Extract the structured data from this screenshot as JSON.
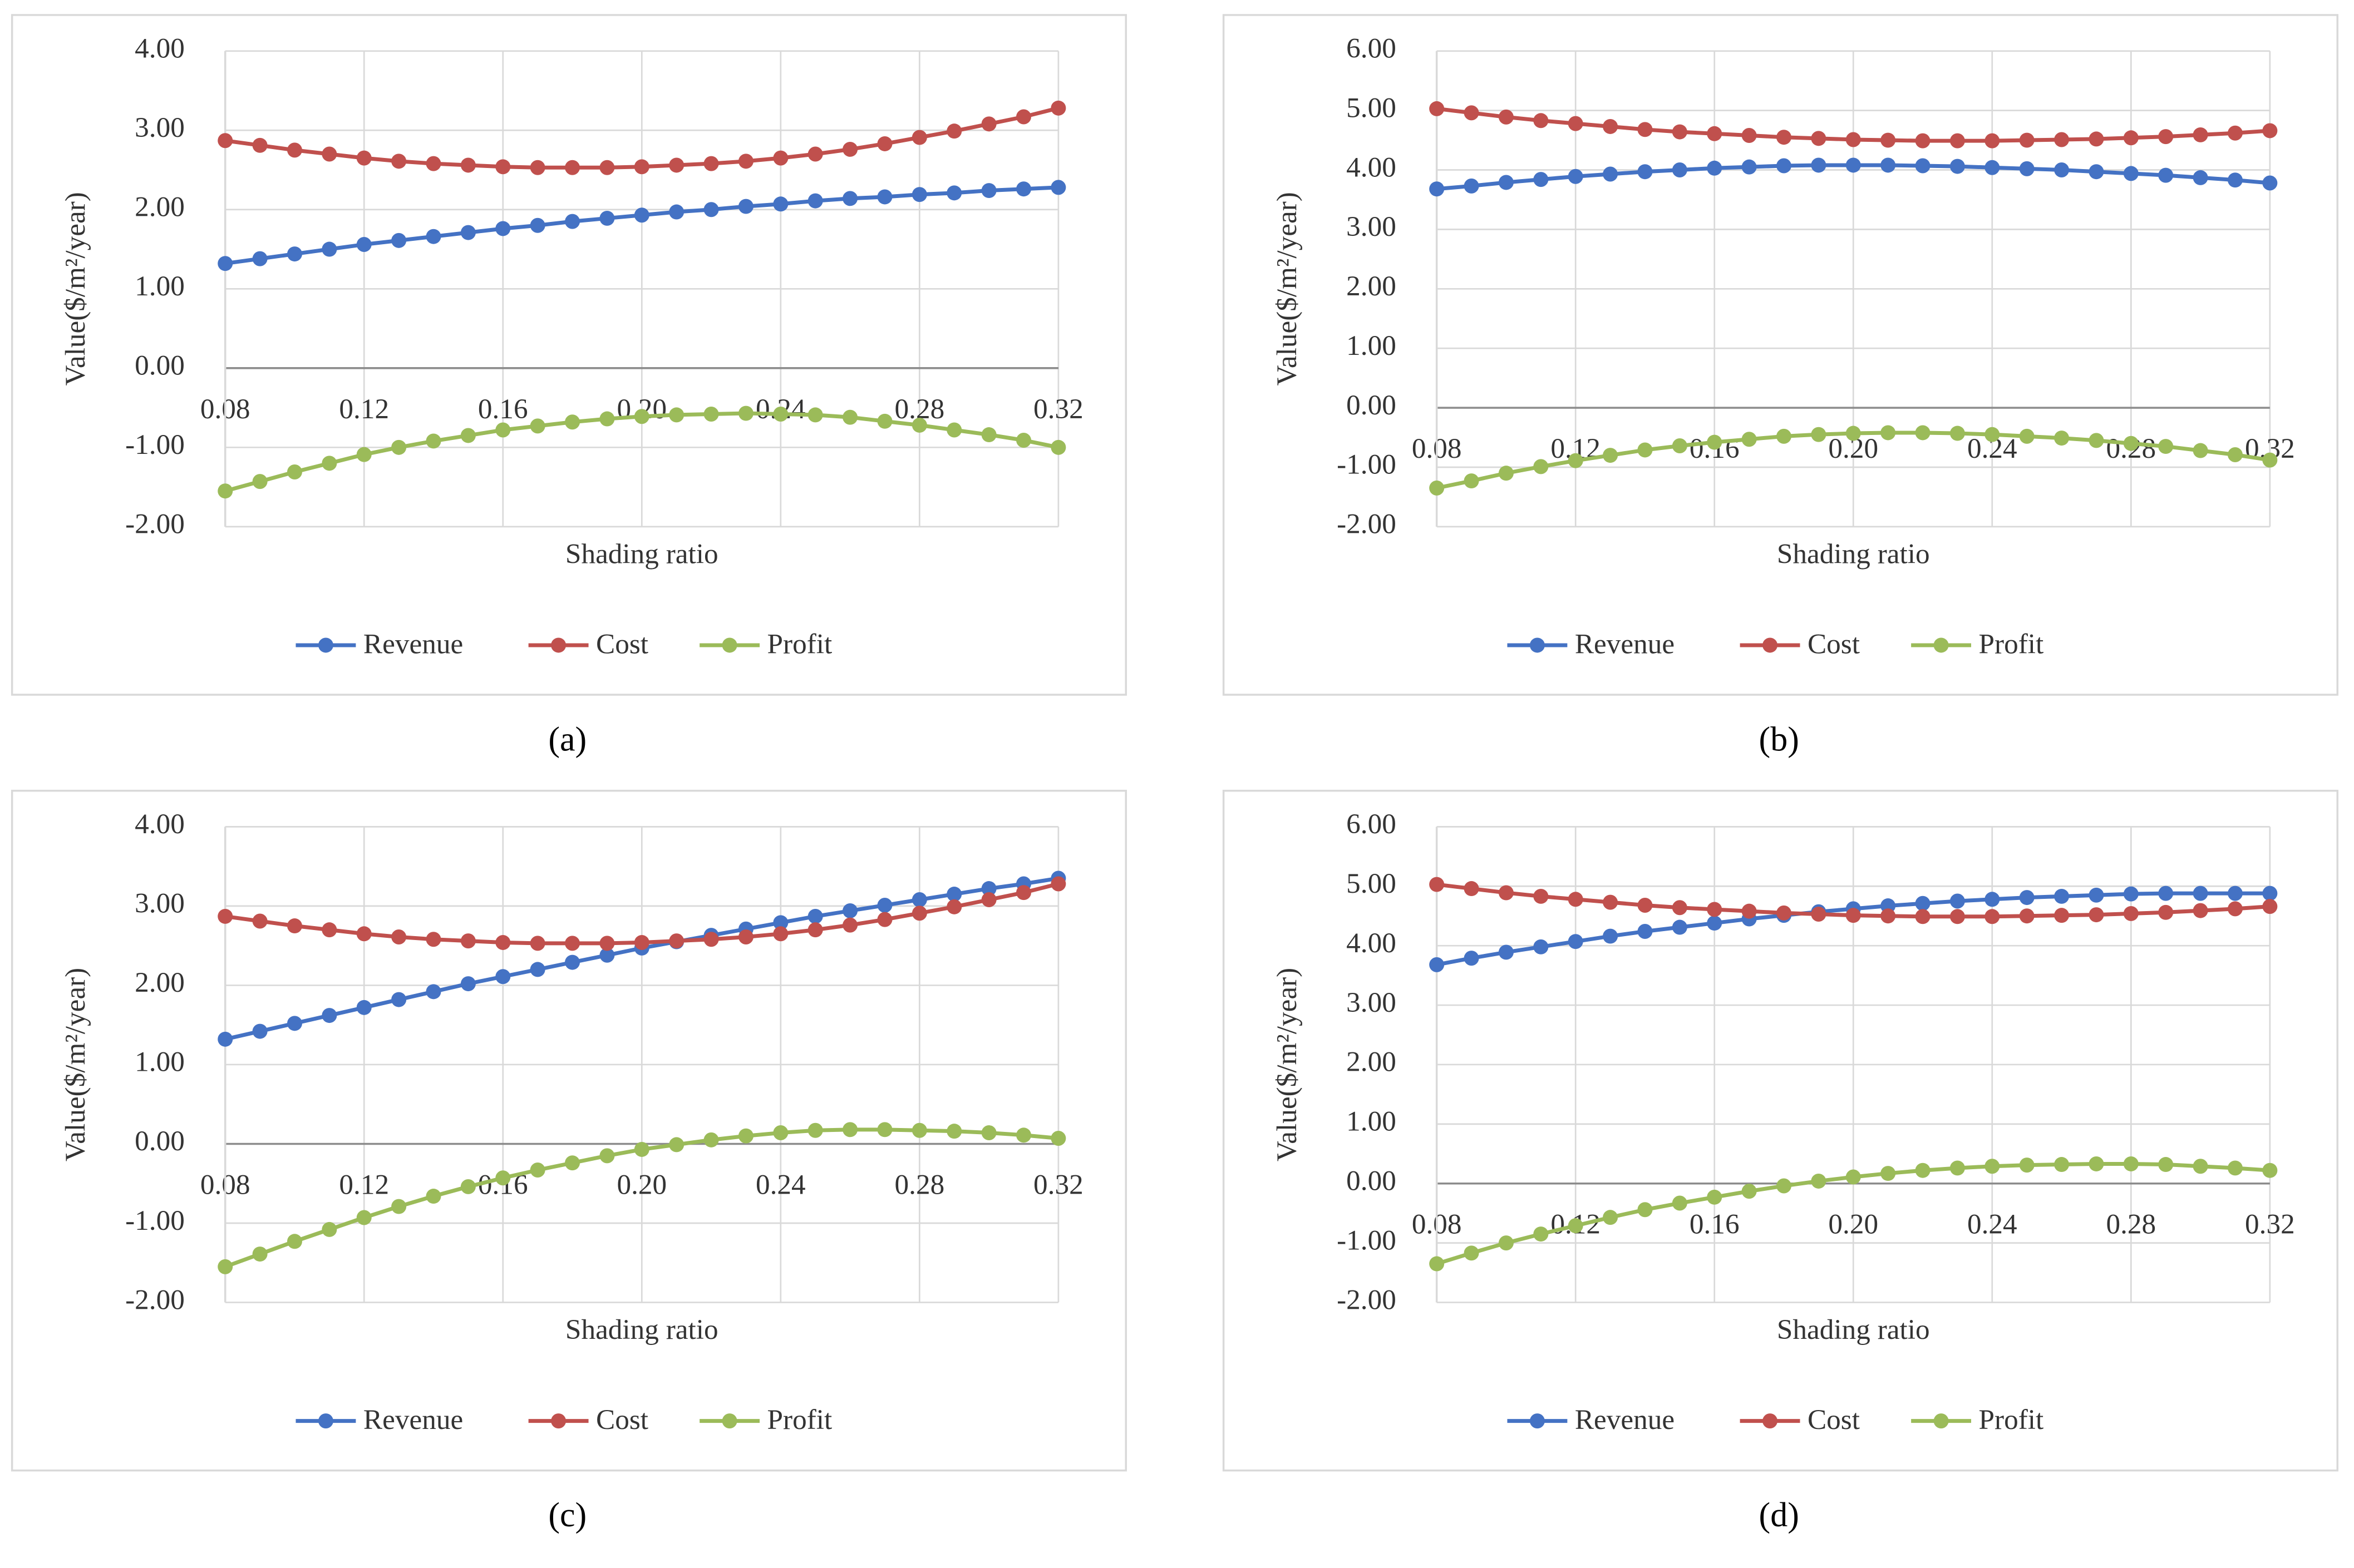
{
  "chart_data": [
    {
      "type": "line",
      "label": "(a)",
      "x_label": "Shading ratio",
      "y_label": "Value($/m²/year)",
      "x": [
        0.08,
        0.09,
        0.1,
        0.11,
        0.12,
        0.13,
        0.14,
        0.15,
        0.16,
        0.17,
        0.18,
        0.19,
        0.2,
        0.21,
        0.22,
        0.23,
        0.24,
        0.25,
        0.26,
        0.27,
        0.28,
        0.29,
        0.3,
        0.31,
        0.32
      ],
      "xlim": [
        0.08,
        0.32
      ],
      "xticks": [
        0.08,
        0.12,
        0.16,
        {
          "value": 0.2,
          "label": "0.20"
        },
        0.24,
        0.28,
        0.32
      ],
      "ylim": [
        -2,
        4
      ],
      "yticks": [
        {
          "value": -2,
          "label": "-2.00"
        },
        {
          "value": -1,
          "label": "-1.00"
        },
        {
          "value": 0,
          "label": "0.00"
        },
        {
          "value": 1,
          "label": "1.00"
        },
        {
          "value": 2,
          "label": "2.00"
        },
        {
          "value": 3,
          "label": "3.00"
        },
        {
          "value": 4,
          "label": "4.00"
        }
      ],
      "grid": true,
      "legend": "bottom",
      "series": [
        {
          "name": "Revenue",
          "color": "#4472c4",
          "values": [
            1.32,
            1.38,
            1.44,
            1.5,
            1.56,
            1.61,
            1.66,
            1.71,
            1.76,
            1.8,
            1.85,
            1.89,
            1.93,
            1.97,
            2.0,
            2.04,
            2.07,
            2.11,
            2.14,
            2.16,
            2.19,
            2.21,
            2.24,
            2.26,
            2.28
          ]
        },
        {
          "name": "Cost",
          "color": "#c0504d",
          "values": [
            2.87,
            2.81,
            2.75,
            2.7,
            2.65,
            2.61,
            2.58,
            2.56,
            2.54,
            2.53,
            2.53,
            2.53,
            2.54,
            2.56,
            2.58,
            2.61,
            2.65,
            2.7,
            2.76,
            2.83,
            2.91,
            2.99,
            3.08,
            3.17,
            3.28
          ]
        },
        {
          "name": "Profit",
          "color": "#9bbb59",
          "values": [
            -1.55,
            -1.43,
            -1.31,
            -1.2,
            -1.09,
            -1.0,
            -0.92,
            -0.85,
            -0.78,
            -0.73,
            -0.68,
            -0.64,
            -0.61,
            -0.59,
            -0.58,
            -0.57,
            -0.58,
            -0.59,
            -0.62,
            -0.67,
            -0.72,
            -0.78,
            -0.84,
            -0.91,
            -1.0
          ]
        }
      ]
    },
    {
      "type": "line",
      "label": "(b)",
      "x_label": "Shading ratio",
      "y_label": "Value($/m²/year)",
      "x": [
        0.08,
        0.09,
        0.1,
        0.11,
        0.12,
        0.13,
        0.14,
        0.15,
        0.16,
        0.17,
        0.18,
        0.19,
        0.2,
        0.21,
        0.22,
        0.23,
        0.24,
        0.25,
        0.26,
        0.27,
        0.28,
        0.29,
        0.3,
        0.31,
        0.32
      ],
      "xlim": [
        0.08,
        0.32
      ],
      "xticks": [
        0.08,
        0.12,
        0.16,
        {
          "value": 0.2,
          "label": "0.20"
        },
        0.24,
        0.28,
        0.32
      ],
      "ylim": [
        -2,
        6
      ],
      "yticks": [
        {
          "value": -2,
          "label": "-2.00"
        },
        {
          "value": -1,
          "label": "-1.00"
        },
        {
          "value": 0,
          "label": "0.00"
        },
        {
          "value": 1,
          "label": "1.00"
        },
        {
          "value": 2,
          "label": "2.00"
        },
        {
          "value": 3,
          "label": "3.00"
        },
        {
          "value": 4,
          "label": "4.00"
        },
        {
          "value": 5,
          "label": "5.00"
        },
        {
          "value": 6,
          "label": "6.00"
        }
      ],
      "grid": true,
      "legend": "bottom",
      "series": [
        {
          "name": "Revenue",
          "color": "#4472c4",
          "values": [
            3.68,
            3.73,
            3.79,
            3.84,
            3.89,
            3.93,
            3.97,
            4.0,
            4.03,
            4.05,
            4.07,
            4.08,
            4.08,
            4.08,
            4.07,
            4.06,
            4.04,
            4.02,
            4.0,
            3.97,
            3.94,
            3.91,
            3.87,
            3.83,
            3.78
          ]
        },
        {
          "name": "Cost",
          "color": "#c0504d",
          "values": [
            5.03,
            4.96,
            4.89,
            4.83,
            4.78,
            4.73,
            4.68,
            4.64,
            4.61,
            4.58,
            4.55,
            4.53,
            4.51,
            4.5,
            4.49,
            4.49,
            4.49,
            4.5,
            4.51,
            4.52,
            4.54,
            4.56,
            4.59,
            4.62,
            4.66
          ]
        },
        {
          "name": "Profit",
          "color": "#9bbb59",
          "values": [
            -1.35,
            -1.23,
            -1.1,
            -0.99,
            -0.89,
            -0.8,
            -0.71,
            -0.64,
            -0.58,
            -0.53,
            -0.48,
            -0.45,
            -0.43,
            -0.42,
            -0.42,
            -0.43,
            -0.45,
            -0.48,
            -0.51,
            -0.55,
            -0.6,
            -0.65,
            -0.72,
            -0.79,
            -0.88
          ]
        }
      ]
    },
    {
      "type": "line",
      "label": "(c)",
      "x_label": "Shading ratio",
      "y_label": "Value($/m²/year)",
      "x": [
        0.08,
        0.09,
        0.1,
        0.11,
        0.12,
        0.13,
        0.14,
        0.15,
        0.16,
        0.17,
        0.18,
        0.19,
        0.2,
        0.21,
        0.22,
        0.23,
        0.24,
        0.25,
        0.26,
        0.27,
        0.28,
        0.29,
        0.3,
        0.31,
        0.32
      ],
      "xlim": [
        0.08,
        0.32
      ],
      "xticks": [
        0.08,
        0.12,
        0.16,
        {
          "value": 0.2,
          "label": "0.20"
        },
        0.24,
        0.28,
        0.32
      ],
      "ylim": [
        -2,
        4
      ],
      "yticks": [
        {
          "value": -2,
          "label": "-2.00"
        },
        {
          "value": -1,
          "label": "-1.00"
        },
        {
          "value": 0,
          "label": "0.00"
        },
        {
          "value": 1,
          "label": "1.00"
        },
        {
          "value": 2,
          "label": "2.00"
        },
        {
          "value": 3,
          "label": "3.00"
        },
        {
          "value": 4,
          "label": "4.00"
        }
      ],
      "grid": true,
      "legend": "bottom",
      "series": [
        {
          "name": "Revenue",
          "color": "#4472c4",
          "values": [
            1.32,
            1.42,
            1.52,
            1.62,
            1.72,
            1.82,
            1.92,
            2.02,
            2.11,
            2.2,
            2.29,
            2.38,
            2.47,
            2.55,
            2.63,
            2.71,
            2.79,
            2.87,
            2.94,
            3.01,
            3.08,
            3.15,
            3.22,
            3.28,
            3.35
          ]
        },
        {
          "name": "Cost",
          "color": "#c0504d",
          "values": [
            2.87,
            2.81,
            2.75,
            2.7,
            2.65,
            2.61,
            2.58,
            2.56,
            2.54,
            2.53,
            2.53,
            2.53,
            2.54,
            2.56,
            2.58,
            2.61,
            2.65,
            2.7,
            2.76,
            2.83,
            2.91,
            2.99,
            3.08,
            3.17,
            3.28
          ]
        },
        {
          "name": "Profit",
          "color": "#9bbb59",
          "values": [
            -1.55,
            -1.39,
            -1.23,
            -1.08,
            -0.93,
            -0.79,
            -0.66,
            -0.54,
            -0.43,
            -0.33,
            -0.24,
            -0.15,
            -0.07,
            -0.01,
            0.05,
            0.1,
            0.14,
            0.17,
            0.18,
            0.18,
            0.17,
            0.16,
            0.14,
            0.11,
            0.07
          ]
        }
      ]
    },
    {
      "type": "line",
      "label": "(d)",
      "x_label": "Shading ratio",
      "y_label": "Value($/m²/year)",
      "x": [
        0.08,
        0.09,
        0.1,
        0.11,
        0.12,
        0.13,
        0.14,
        0.15,
        0.16,
        0.17,
        0.18,
        0.19,
        0.2,
        0.21,
        0.22,
        0.23,
        0.24,
        0.25,
        0.26,
        0.27,
        0.28,
        0.29,
        0.3,
        0.31,
        0.32
      ],
      "xlim": [
        0.08,
        0.32
      ],
      "xticks": [
        0.08,
        0.12,
        0.16,
        {
          "value": 0.2,
          "label": "0.20"
        },
        0.24,
        0.28,
        0.32
      ],
      "ylim": [
        -2,
        6
      ],
      "yticks": [
        {
          "value": -2,
          "label": "-2.00"
        },
        {
          "value": -1,
          "label": "-1.00"
        },
        {
          "value": 0,
          "label": "0.00"
        },
        {
          "value": 1,
          "label": "1.00"
        },
        {
          "value": 2,
          "label": "2.00"
        },
        {
          "value": 3,
          "label": "3.00"
        },
        {
          "value": 4,
          "label": "4.00"
        },
        {
          "value": 5,
          "label": "5.00"
        },
        {
          "value": 6,
          "label": "6.00"
        }
      ],
      "grid": true,
      "legend": "bottom",
      "series": [
        {
          "name": "Revenue",
          "color": "#4472c4",
          "values": [
            3.68,
            3.79,
            3.89,
            3.98,
            4.07,
            4.16,
            4.24,
            4.31,
            4.38,
            4.45,
            4.51,
            4.57,
            4.62,
            4.67,
            4.71,
            4.75,
            4.78,
            4.81,
            4.83,
            4.85,
            4.87,
            4.88,
            4.88,
            4.88,
            4.88
          ]
        },
        {
          "name": "Cost",
          "color": "#c0504d",
          "values": [
            5.03,
            4.96,
            4.89,
            4.83,
            4.78,
            4.73,
            4.68,
            4.64,
            4.61,
            4.58,
            4.55,
            4.53,
            4.51,
            4.5,
            4.49,
            4.49,
            4.49,
            4.5,
            4.51,
            4.52,
            4.54,
            4.56,
            4.59,
            4.62,
            4.66
          ]
        },
        {
          "name": "Profit",
          "color": "#9bbb59",
          "values": [
            -1.35,
            -1.17,
            -1.0,
            -0.85,
            -0.71,
            -0.57,
            -0.44,
            -0.33,
            -0.23,
            -0.13,
            -0.04,
            0.04,
            0.11,
            0.17,
            0.22,
            0.26,
            0.29,
            0.31,
            0.32,
            0.33,
            0.33,
            0.32,
            0.29,
            0.26,
            0.22
          ]
        }
      ]
    }
  ]
}
